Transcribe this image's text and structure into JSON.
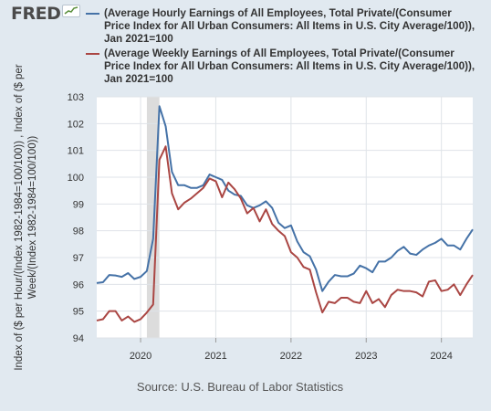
{
  "logo": {
    "text": "FRED"
  },
  "colors": {
    "background": "#e1e9f0",
    "plot_bg": "#ffffff",
    "grid": "#dfe3e8",
    "recession": "#dcdcdc"
  },
  "chart_data": {
    "type": "line",
    "title": "",
    "xlabel": "",
    "ylabel": "Index of ($ per Hour/(Index 1982-1984=100/100)) , Index of ($ per Week/(Index 1982-1984=100/100))",
    "ylabel_lines": [
      "Index of ($ per Hour/(Index 1982-1984=100/100)) , Index of ($ per",
      "Week/(Index 1982-1984=100/100))"
    ],
    "source": "Source: U.S. Bureau of Labor Statistics",
    "ylim": [
      94,
      103
    ],
    "yticks": [
      "94",
      "95",
      "96",
      "97",
      "98",
      "99",
      "100",
      "101",
      "102",
      "103"
    ],
    "xlim": [
      "2019-06",
      "2024-06"
    ],
    "xticks": [
      {
        "x": "2020-01",
        "label": "2020"
      },
      {
        "x": "2021-01",
        "label": "2021"
      },
      {
        "x": "2022-01",
        "label": "2022"
      },
      {
        "x": "2023-01",
        "label": "2023"
      },
      {
        "x": "2024-01",
        "label": "2024"
      }
    ],
    "recession": [
      "2020-02",
      "2020-04"
    ],
    "grid": true,
    "x": [
      "2019-06",
      "2019-07",
      "2019-08",
      "2019-09",
      "2019-10",
      "2019-11",
      "2019-12",
      "2020-01",
      "2020-02",
      "2020-03",
      "2020-04",
      "2020-05",
      "2020-06",
      "2020-07",
      "2020-08",
      "2020-09",
      "2020-10",
      "2020-11",
      "2020-12",
      "2021-01",
      "2021-02",
      "2021-03",
      "2021-04",
      "2021-05",
      "2021-06",
      "2021-07",
      "2021-08",
      "2021-09",
      "2021-10",
      "2021-11",
      "2021-12",
      "2022-01",
      "2022-02",
      "2022-03",
      "2022-04",
      "2022-05",
      "2022-06",
      "2022-07",
      "2022-08",
      "2022-09",
      "2022-10",
      "2022-11",
      "2022-12",
      "2023-01",
      "2023-02",
      "2023-03",
      "2023-04",
      "2023-05",
      "2023-06",
      "2023-07",
      "2023-08",
      "2023-09",
      "2023-10",
      "2023-11",
      "2023-12",
      "2024-01",
      "2024-02",
      "2024-03",
      "2024-04",
      "2024-05",
      "2024-06"
    ],
    "series": [
      {
        "name": "(Average Hourly Earnings of All Employees, Total Private/(Consumer Price Index for All Urban Consumers: All Items in U.S. City Average/100)), Jan 2021=100",
        "color": "#4572a7",
        "values": [
          96.05,
          96.08,
          96.35,
          96.33,
          96.28,
          96.42,
          96.2,
          96.28,
          96.5,
          97.7,
          102.65,
          101.9,
          100.2,
          99.7,
          99.7,
          99.6,
          99.6,
          99.7,
          100.1,
          100.0,
          99.9,
          99.5,
          99.35,
          99.3,
          98.95,
          98.85,
          98.95,
          99.1,
          98.85,
          98.3,
          98.1,
          98.2,
          97.6,
          97.2,
          97.05,
          96.55,
          95.75,
          96.1,
          96.35,
          96.3,
          96.3,
          96.4,
          96.7,
          96.6,
          96.45,
          96.85,
          96.85,
          97.0,
          97.25,
          97.4,
          97.15,
          97.1,
          97.3,
          97.45,
          97.55,
          97.7,
          97.45,
          97.45,
          97.3,
          97.7,
          98.05
        ]
      },
      {
        "name": "(Average Weekly Earnings of All Employees, Total Private/(Consumer Price Index for All Urban Consumers: All Items in U.S. City Average/100)), Jan 2021=100",
        "color": "#aa4643",
        "values": [
          94.65,
          94.7,
          95.0,
          95.0,
          94.65,
          94.8,
          94.6,
          94.7,
          94.95,
          95.25,
          100.65,
          101.15,
          99.4,
          98.8,
          99.05,
          99.2,
          99.4,
          99.6,
          99.95,
          99.85,
          99.25,
          99.8,
          99.55,
          99.2,
          98.65,
          98.85,
          98.35,
          98.8,
          98.25,
          98.0,
          97.8,
          97.2,
          97.0,
          96.65,
          96.55,
          95.7,
          94.95,
          95.35,
          95.3,
          95.5,
          95.5,
          95.35,
          95.3,
          95.75,
          95.3,
          95.45,
          95.15,
          95.6,
          95.8,
          95.75,
          95.75,
          95.7,
          95.55,
          96.1,
          96.15,
          95.75,
          95.8,
          96.0,
          95.6,
          96.0,
          96.35
        ]
      }
    ]
  }
}
